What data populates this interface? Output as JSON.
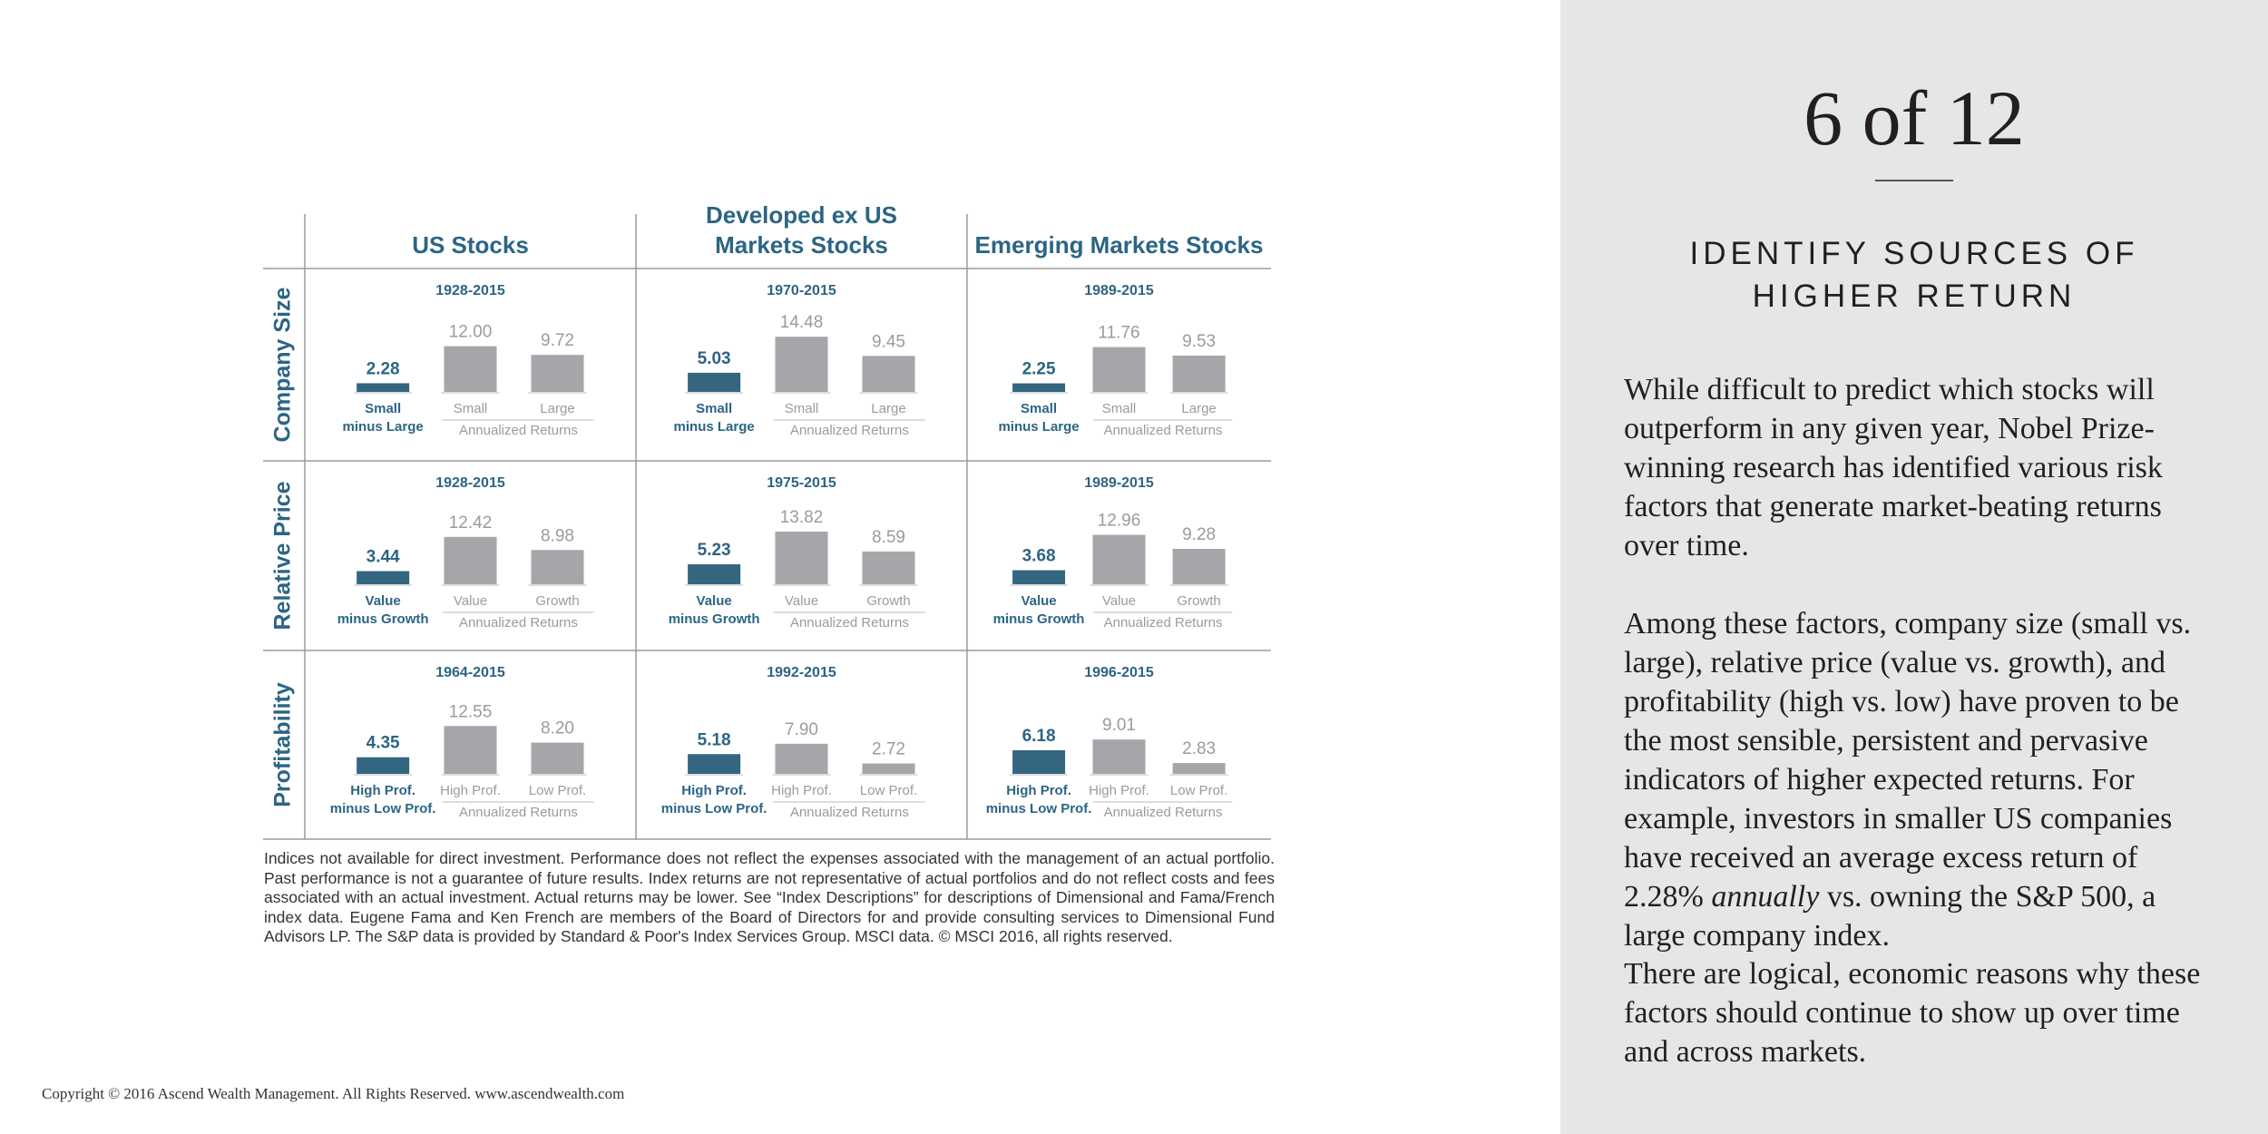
{
  "grid": {
    "columns": [
      [
        "US Stocks"
      ],
      [
        "Developed ex US",
        "Markets Stocks"
      ],
      [
        "Emerging Markets Stocks"
      ]
    ],
    "returns_label": "Annualized Returns",
    "rows": [
      {
        "label": "Company Size",
        "premium_label": [
          "Small",
          "minus Large"
        ],
        "a_label": "Small",
        "b_label": "Large",
        "cells": [
          {
            "period": "1928-2015",
            "values": [
              2.28,
              12,
              9.72
            ],
            "value_labels": [
              "2.28",
              "12.00",
              "9.72"
            ]
          },
          {
            "period": "1970-2015",
            "values": [
              5.03,
              14.48,
              9.45
            ],
            "value_labels": [
              "5.03",
              "14.48",
              "9.45"
            ]
          },
          {
            "period": "1989-2015",
            "values": [
              2.25,
              11.76,
              9.53
            ],
            "value_labels": [
              "2.25",
              "11.76",
              "9.53"
            ]
          }
        ]
      },
      {
        "label": "Relative Price",
        "premium_label": [
          "Value",
          "minus Growth"
        ],
        "a_label": "Value",
        "b_label": "Growth",
        "cells": [
          {
            "period": "1928-2015",
            "values": [
              3.44,
              12.42,
              8.98
            ],
            "value_labels": [
              "3.44",
              "12.42",
              "8.98"
            ]
          },
          {
            "period": "1975-2015",
            "values": [
              5.23,
              13.82,
              8.59
            ],
            "value_labels": [
              "5.23",
              "13.82",
              "8.59"
            ]
          },
          {
            "period": "1989-2015",
            "values": [
              3.68,
              12.96,
              9.28
            ],
            "value_labels": [
              "3.68",
              "12.96",
              "9.28"
            ]
          }
        ]
      },
      {
        "label": "Profitability",
        "premium_label": [
          "High Prof.",
          "minus Low Prof."
        ],
        "a_label": "High Prof.",
        "b_label": "Low Prof.",
        "cells": [
          {
            "period": "1964-2015",
            "values": [
              4.35,
              12.55,
              8.2
            ],
            "value_labels": [
              "4.35",
              "12.55",
              "8.20"
            ]
          },
          {
            "period": "1992-2015",
            "values": [
              5.18,
              7.9,
              2.72
            ],
            "value_labels": [
              "5.18",
              "7.90",
              "2.72"
            ]
          },
          {
            "period": "1996-2015",
            "values": [
              6.18,
              9.01,
              2.83
            ],
            "value_labels": [
              "6.18",
              "9.01",
              "2.83"
            ]
          }
        ]
      }
    ]
  },
  "footnote": "Indices not available for direct investment. Performance does not reflect the expenses associated with the management of an actual portfolio. Past performance is not a guarantee of future results. Index returns are not representative of actual portfolios and do not reflect costs and fees associated with an actual investment. Actual returns may be lower. See “Index Descriptions” for descriptions of Dimensional and Fama/French index data. Eugene Fama and Ken French are members of the Board of Directors for and provide consulting services to Dimensional Fund Advisors LP. The S&P data is provided by Standard & Poor's Index Services Group. MSCI data. © MSCI 2016, all rights reserved.",
  "copyright": "Copyright © 2016 Ascend Wealth Management. All Rights Reserved.  www.ascendwealth.com",
  "sidebar": {
    "page": "6 of 12",
    "heading": [
      "IDENTIFY SOURCES OF",
      "HIGHER RETURN"
    ],
    "paragraph_1": "While difficult to predict which stocks will outperform in any given year, Nobel Prize-winning research has identified various risk factors that generate market-beating returns over time.",
    "paragraph_2": [
      "Among these factors, company size (small vs. large), relative price (value vs. growth), and profitability (high vs. low) have proven to be the most sensible, persistent and pervasive indicators of higher expected returns. For example, investors in smaller US companies have received an average excess return of 2.28%",
      "annually",
      "vs. owning the S&P 500, a large company index."
    ],
    "paragraph_3": "There are logical, economic reasons why these factors should continue to show up over time and across markets."
  }
}
